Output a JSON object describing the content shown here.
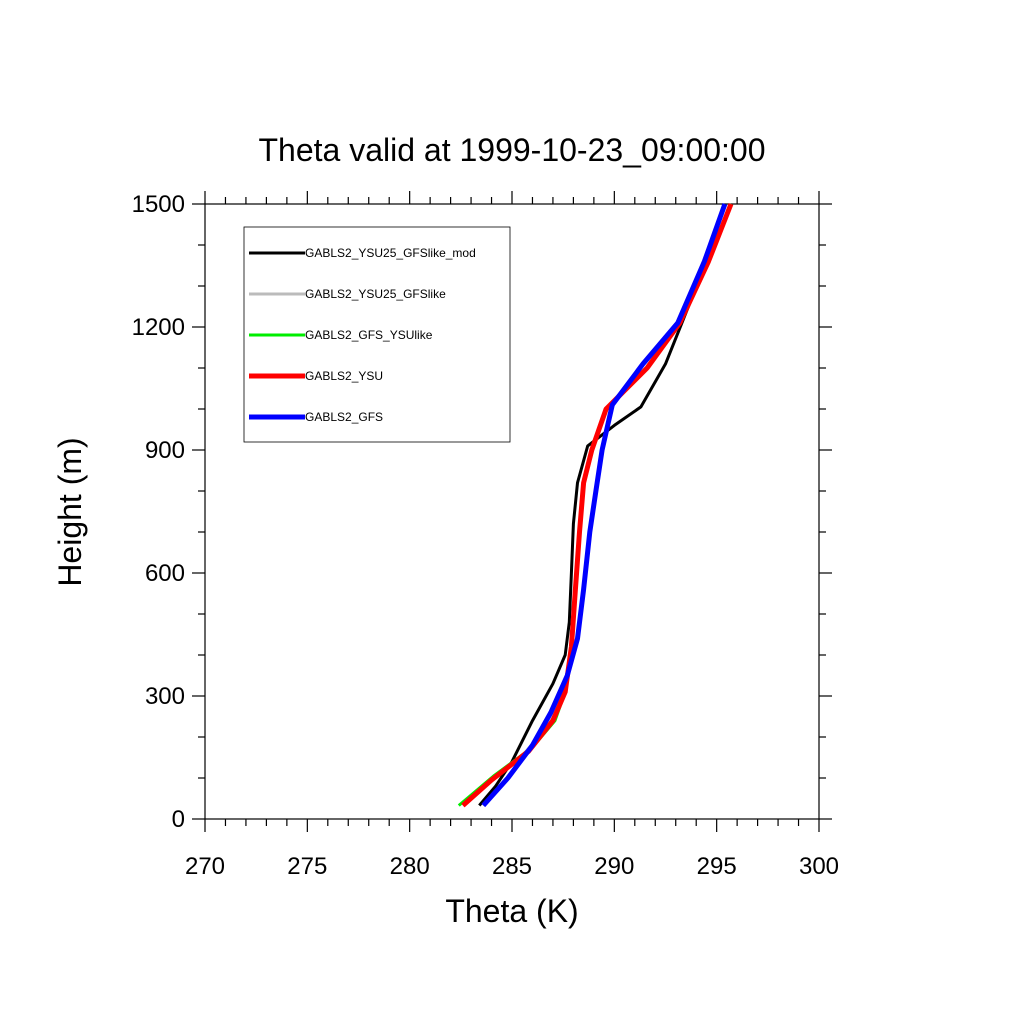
{
  "chart_data": {
    "type": "line",
    "title": "Theta valid at 1999-10-23_09:00:00",
    "xlabel": "Theta (K)",
    "ylabel": "Height (m)",
    "xlim": [
      270,
      300
    ],
    "ylim": [
      0,
      1500
    ],
    "xticks": [
      270,
      275,
      280,
      285,
      290,
      295,
      300
    ],
    "xtick_labels": [
      "270",
      "275",
      "280",
      "285",
      "290",
      "295",
      "300"
    ],
    "yticks": [
      0,
      300,
      600,
      900,
      1200,
      1500
    ],
    "ytick_labels": [
      "0",
      "300",
      "600",
      "900",
      "1200",
      "1500"
    ],
    "legend_position": "top-left",
    "grid": false,
    "series": [
      {
        "name": "GABLS2_YSU25_GFSlike_mod",
        "color": "#000000",
        "width": 3,
        "points": [
          [
            283.4,
            33
          ],
          [
            284.2,
            80
          ],
          [
            285.0,
            140
          ],
          [
            286.0,
            240
          ],
          [
            287.0,
            330
          ],
          [
            287.6,
            400
          ],
          [
            287.8,
            480
          ],
          [
            287.9,
            600
          ],
          [
            288.0,
            720
          ],
          [
            288.2,
            820
          ],
          [
            288.7,
            910
          ],
          [
            290.0,
            960
          ],
          [
            291.3,
            1005
          ],
          [
            292.5,
            1110
          ],
          [
            293.3,
            1210
          ],
          [
            294.5,
            1360
          ],
          [
            295.7,
            1500
          ]
        ]
      },
      {
        "name": "GABLS2_YSU25_GFSlike",
        "color": "#bbbbbb",
        "width": 3,
        "points": [
          [
            282.6,
            33
          ],
          [
            284.0,
            95
          ],
          [
            285.6,
            160
          ],
          [
            286.8,
            230
          ],
          [
            287.5,
            300
          ],
          [
            287.9,
            420
          ],
          [
            288.1,
            560
          ],
          [
            288.3,
            700
          ],
          [
            288.5,
            820
          ],
          [
            288.9,
            900
          ],
          [
            289.6,
            1000
          ],
          [
            291.6,
            1100
          ],
          [
            293.2,
            1210
          ],
          [
            294.6,
            1360
          ],
          [
            295.7,
            1500
          ]
        ]
      },
      {
        "name": "GABLS2_GFS_YSUlike",
        "color": "#00ee00",
        "width": 3,
        "points": [
          [
            282.4,
            33
          ],
          [
            284.1,
            105
          ],
          [
            286.0,
            175
          ],
          [
            287.1,
            240
          ],
          [
            287.6,
            310
          ],
          [
            287.9,
            420
          ],
          [
            288.1,
            560
          ],
          [
            288.3,
            700
          ],
          [
            288.5,
            820
          ],
          [
            288.9,
            900
          ],
          [
            289.6,
            1000
          ],
          [
            291.6,
            1100
          ],
          [
            293.2,
            1210
          ],
          [
            294.6,
            1360
          ],
          [
            295.7,
            1500
          ]
        ]
      },
      {
        "name": "GABLS2_YSU",
        "color": "#ff0000",
        "width": 5,
        "points": [
          [
            282.6,
            33
          ],
          [
            284.0,
            95
          ],
          [
            285.8,
            165
          ],
          [
            287.0,
            240
          ],
          [
            287.6,
            310
          ],
          [
            287.9,
            420
          ],
          [
            288.1,
            560
          ],
          [
            288.3,
            700
          ],
          [
            288.5,
            820
          ],
          [
            288.9,
            900
          ],
          [
            289.6,
            1000
          ],
          [
            291.6,
            1100
          ],
          [
            293.2,
            1210
          ],
          [
            294.6,
            1360
          ],
          [
            295.7,
            1500
          ]
        ]
      },
      {
        "name": "GABLS2_GFS",
        "color": "#0000ff",
        "width": 5,
        "points": [
          [
            283.6,
            33
          ],
          [
            284.8,
            100
          ],
          [
            286.0,
            180
          ],
          [
            286.9,
            260
          ],
          [
            287.7,
            350
          ],
          [
            288.2,
            440
          ],
          [
            288.5,
            560
          ],
          [
            288.8,
            700
          ],
          [
            289.1,
            800
          ],
          [
            289.4,
            900
          ],
          [
            289.9,
            1010
          ],
          [
            291.4,
            1110
          ],
          [
            293.1,
            1210
          ],
          [
            294.4,
            1360
          ],
          [
            295.4,
            1500
          ]
        ]
      }
    ]
  }
}
